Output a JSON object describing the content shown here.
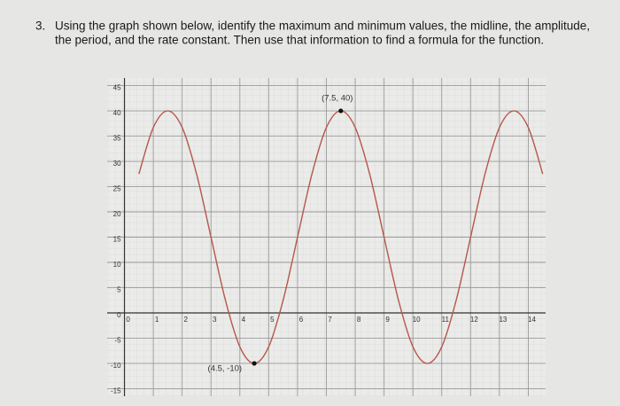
{
  "question": {
    "number": "3.",
    "lines": [
      "Using the graph shown below, identify the maximum and minimum values, the midline, the amplitude,",
      "the period, and the rate constant. Then use that information to find a formula for the function."
    ]
  },
  "chart_data": {
    "type": "line",
    "x": [
      0.5,
      1,
      1.5,
      2,
      2.5,
      3,
      3.5,
      4,
      4.5,
      5,
      5.5,
      6,
      6.5,
      7,
      7.5,
      8,
      8.5,
      9,
      9.5,
      10,
      10.5,
      11,
      11.5,
      12,
      12.5,
      13,
      13.5,
      14,
      14.5
    ],
    "series": [
      {
        "color": "#b5584a",
        "values": [
          27.5,
          36.7,
          40,
          36.7,
          27.5,
          15,
          2.5,
          -6.7,
          -10,
          -6.7,
          2.5,
          15,
          27.5,
          36.7,
          40,
          36.7,
          27.5,
          15,
          2.5,
          -6.7,
          -10,
          -6.7,
          2.5,
          15,
          27.5,
          36.7,
          40,
          36.7,
          27.5
        ]
      }
    ],
    "xlim": [
      -0.6,
      14.6
    ],
    "ylim": [
      -16.5,
      46.5
    ],
    "xticks": [
      0,
      1,
      2,
      3,
      4,
      5,
      6,
      7,
      8,
      9,
      10,
      11,
      12,
      13,
      14
    ],
    "yticks": [
      -15,
      -10,
      -5,
      0,
      5,
      10,
      15,
      20,
      25,
      30,
      35,
      40,
      45
    ],
    "grid": true,
    "annotations": [
      {
        "text": "(7.5, 40)",
        "x": 7.5,
        "y": 40
      },
      {
        "text": "(4.5, -10)",
        "x": 4.5,
        "y": -10
      }
    ]
  }
}
